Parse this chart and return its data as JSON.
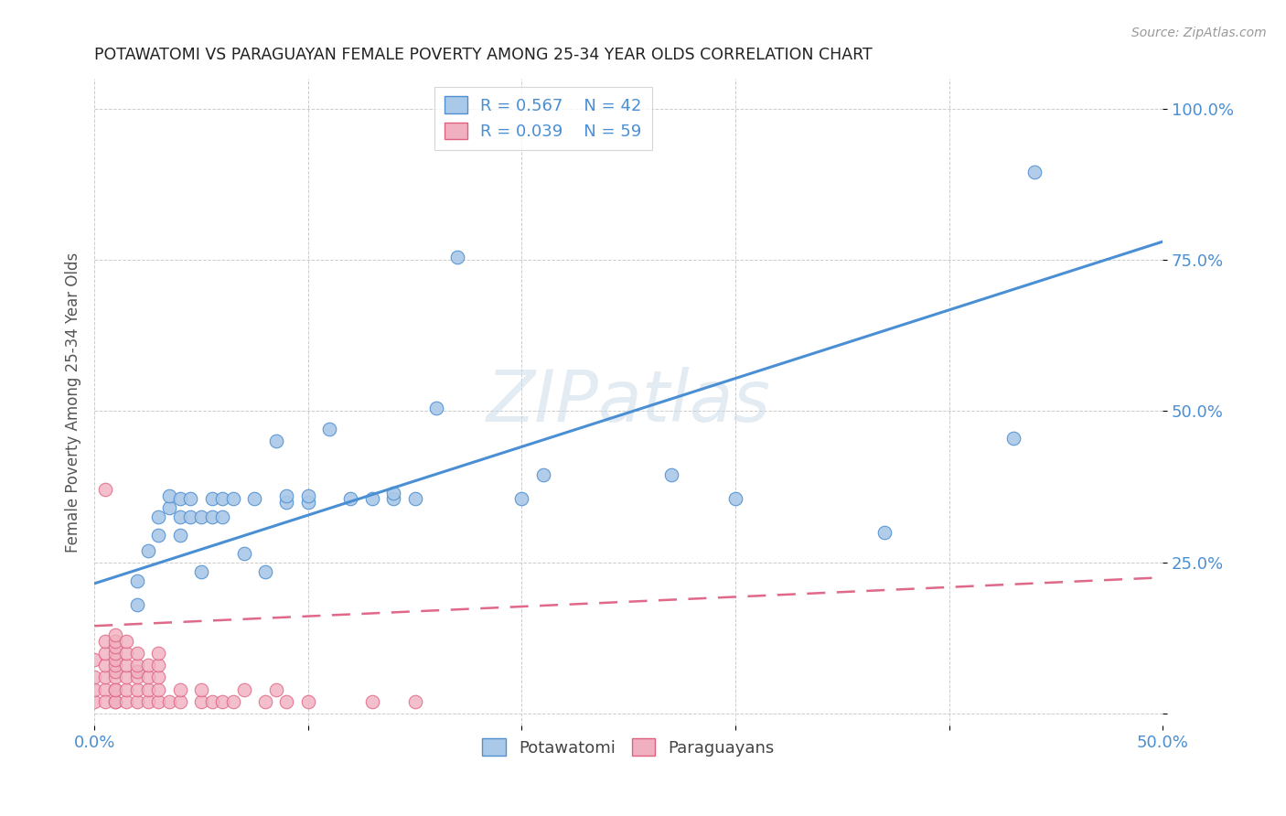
{
  "title": "POTAWATOMI VS PARAGUAYAN FEMALE POVERTY AMONG 25-34 YEAR OLDS CORRELATION CHART",
  "source": "Source: ZipAtlas.com",
  "ylabel": "Female Poverty Among 25-34 Year Olds",
  "xlim": [
    0.0,
    0.5
  ],
  "ylim": [
    -0.02,
    1.05
  ],
  "xticks": [
    0.0,
    0.1,
    0.2,
    0.3,
    0.4,
    0.5
  ],
  "xtick_labels": [
    "0.0%",
    "",
    "",
    "",
    "",
    "50.0%"
  ],
  "yticks": [
    0.0,
    0.25,
    0.5,
    0.75,
    1.0
  ],
  "ytick_labels": [
    "",
    "25.0%",
    "50.0%",
    "75.0%",
    "100.0%"
  ],
  "blue_R": 0.567,
  "blue_N": 42,
  "pink_R": 0.039,
  "pink_N": 59,
  "blue_color": "#aac8e8",
  "pink_color": "#f0b0c0",
  "blue_edge_color": "#5090d0",
  "pink_edge_color": "#e06080",
  "blue_line_color": "#4a8fd4",
  "pink_line_color": "#e06888",
  "legend_text_color": "#4a8fd4",
  "watermark": "ZIPatlas",
  "blue_line_x0": 0.0,
  "blue_line_y0": 0.215,
  "blue_line_x1": 0.5,
  "blue_line_y1": 0.78,
  "pink_line_x0": 0.0,
  "pink_line_y0": 0.145,
  "pink_line_x1": 0.5,
  "pink_line_y1": 0.225,
  "blue_x": [
    0.02,
    0.02,
    0.025,
    0.03,
    0.03,
    0.035,
    0.035,
    0.04,
    0.04,
    0.04,
    0.045,
    0.045,
    0.05,
    0.05,
    0.055,
    0.055,
    0.06,
    0.06,
    0.065,
    0.07,
    0.075,
    0.08,
    0.085,
    0.09,
    0.09,
    0.1,
    0.1,
    0.11,
    0.12,
    0.13,
    0.14,
    0.14,
    0.15,
    0.16,
    0.17,
    0.2,
    0.21,
    0.27,
    0.3,
    0.37,
    0.43,
    0.44
  ],
  "blue_y": [
    0.18,
    0.22,
    0.27,
    0.295,
    0.325,
    0.34,
    0.36,
    0.295,
    0.325,
    0.355,
    0.325,
    0.355,
    0.235,
    0.325,
    0.325,
    0.355,
    0.325,
    0.355,
    0.355,
    0.265,
    0.355,
    0.235,
    0.45,
    0.35,
    0.36,
    0.35,
    0.36,
    0.47,
    0.355,
    0.355,
    0.355,
    0.365,
    0.355,
    0.505,
    0.755,
    0.355,
    0.395,
    0.395,
    0.355,
    0.3,
    0.455,
    0.895
  ],
  "pink_x": [
    0.0,
    0.0,
    0.0,
    0.0,
    0.005,
    0.005,
    0.005,
    0.005,
    0.005,
    0.005,
    0.005,
    0.01,
    0.01,
    0.01,
    0.01,
    0.01,
    0.01,
    0.01,
    0.01,
    0.01,
    0.01,
    0.01,
    0.01,
    0.015,
    0.015,
    0.015,
    0.015,
    0.015,
    0.015,
    0.02,
    0.02,
    0.02,
    0.02,
    0.02,
    0.02,
    0.025,
    0.025,
    0.025,
    0.025,
    0.03,
    0.03,
    0.03,
    0.03,
    0.03,
    0.035,
    0.04,
    0.04,
    0.05,
    0.05,
    0.055,
    0.06,
    0.065,
    0.07,
    0.08,
    0.085,
    0.09,
    0.1,
    0.13,
    0.15
  ],
  "pink_y": [
    0.02,
    0.04,
    0.06,
    0.09,
    0.04,
    0.06,
    0.08,
    0.1,
    0.12,
    0.37,
    0.02,
    0.02,
    0.04,
    0.06,
    0.07,
    0.08,
    0.09,
    0.1,
    0.11,
    0.12,
    0.13,
    0.02,
    0.04,
    0.02,
    0.04,
    0.06,
    0.08,
    0.1,
    0.12,
    0.02,
    0.04,
    0.06,
    0.07,
    0.08,
    0.1,
    0.02,
    0.04,
    0.06,
    0.08,
    0.02,
    0.04,
    0.06,
    0.08,
    0.1,
    0.02,
    0.02,
    0.04,
    0.02,
    0.04,
    0.02,
    0.02,
    0.02,
    0.04,
    0.02,
    0.04,
    0.02,
    0.02,
    0.02,
    0.02
  ]
}
